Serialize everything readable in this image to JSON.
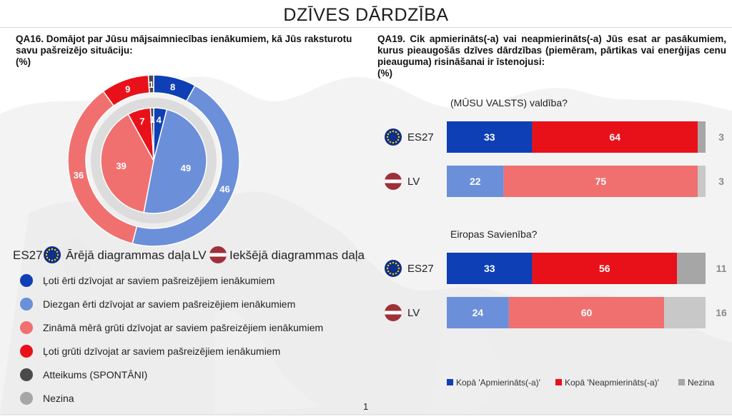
{
  "page_title": "DZĪVES DĀRDZĪBA",
  "page_number": "1",
  "colors": {
    "dark_blue": "#0e3fb4",
    "light_blue": "#6c8fda",
    "light_red": "#f07070",
    "red": "#e8111a",
    "dark_gray": "#4a4a4a",
    "gray": "#a6a6a6",
    "light_gray": "#c8c8c8"
  },
  "left": {
    "question": "QA16. Domājot par Jūsu mājsaimniecības ienākumiem, kā Jūs raksturotu savu pašreizējo situāciju:",
    "unit": "(%)",
    "legend_es27": "ES27",
    "legend_outer": "Ārējā diagrammas daļa",
    "legend_lv": "LV",
    "legend_inner": "Iekšējā diagrammas daļa",
    "legend_items": [
      {
        "label": "Ļoti ērti dzīvojat ar saviem pašreizējiem ienākumiem",
        "color": "#0e3fb4"
      },
      {
        "label": "Diezgan ērti dzīvojat ar saviem pašreizējiem ienākumiem",
        "color": "#6c8fda"
      },
      {
        "label": "Zināmā mērā grūti dzīvojat ar saviem pašreizējiem ienākumiem",
        "color": "#f07070"
      },
      {
        "label": "Ļoti grūti dzīvojat ar saviem pašreizējiem ienākumiem",
        "color": "#e8111a"
      },
      {
        "label": "Atteikums (SPONTĀNI)",
        "color": "#4a4a4a"
      },
      {
        "label": "Nezina",
        "color": "#a6a6a6"
      }
    ]
  },
  "right": {
    "question": "QA19. Cik apmierināts(-a) vai neapmierināts(-a) Jūs esat ar pasākumiem, kurus pieaugošās dzīves dārdzības (piemēram, pārtikas vai enerģijas cenu pieauguma) risināšanai ir īstenojusi:",
    "unit": "(%)",
    "legend": [
      "Kopā 'Apmierināts(-a)'",
      "Kopā 'Neapmierināts(-a)'",
      "Nezina"
    ]
  },
  "chart_data": [
    {
      "type": "pie",
      "subtype": "double-donut",
      "categories": [
        "Ļoti ērti dzīvojat ar saviem pašreizējiem ienākumiem",
        "Diezgan ērti dzīvojat ar saviem pašreizējiem ienākumiem",
        "Zināmā mērā grūti dzīvojat ar saviem pašreizējiem ienākumiem",
        "Ļoti grūti dzīvojat ar saviem pašreizējiem ienākumiem",
        "Atteikums (SPONTĀNI)",
        "Nezina"
      ],
      "series": [
        {
          "name": "ES27",
          "ring": "outer",
          "values": [
            8,
            46,
            36,
            9,
            1,
            0
          ]
        },
        {
          "name": "LV",
          "ring": "inner",
          "values": [
            4,
            49,
            39,
            7,
            1,
            0
          ]
        }
      ],
      "labels": {
        "outer": [
          "8",
          "46",
          "36",
          "9",
          "1",
          ""
        ],
        "inner": [
          "4",
          "49",
          "39",
          "7",
          "1",
          ""
        ]
      }
    },
    {
      "type": "bar",
      "orientation": "horizontal-stacked",
      "groups": [
        {
          "title": "(MŪSU VALSTS) valdība?",
          "rows": [
            {
              "label": "ES27",
              "flag": "eu",
              "values": [
                33,
                64,
                3
              ],
              "colors": [
                "#0e3fb4",
                "#e8111a",
                "#a6a6a6"
              ]
            },
            {
              "label": "LV",
              "flag": "lv",
              "values": [
                22,
                75,
                3
              ],
              "colors": [
                "#6c8fda",
                "#f07070",
                "#c8c8c8"
              ]
            }
          ]
        },
        {
          "title": "Eiropas Savienība?",
          "rows": [
            {
              "label": "ES27",
              "flag": "eu",
              "values": [
                33,
                56,
                11
              ],
              "colors": [
                "#0e3fb4",
                "#e8111a",
                "#a6a6a6"
              ]
            },
            {
              "label": "LV",
              "flag": "lv",
              "values": [
                24,
                60,
                16
              ],
              "colors": [
                "#6c8fda",
                "#f07070",
                "#c8c8c8"
              ]
            }
          ]
        }
      ],
      "series_names": [
        "Kopā 'Apmierināts(-a)'",
        "Kopā 'Neapmierināts(-a)'",
        "Nezina"
      ],
      "xlim": [
        0,
        100
      ]
    }
  ]
}
